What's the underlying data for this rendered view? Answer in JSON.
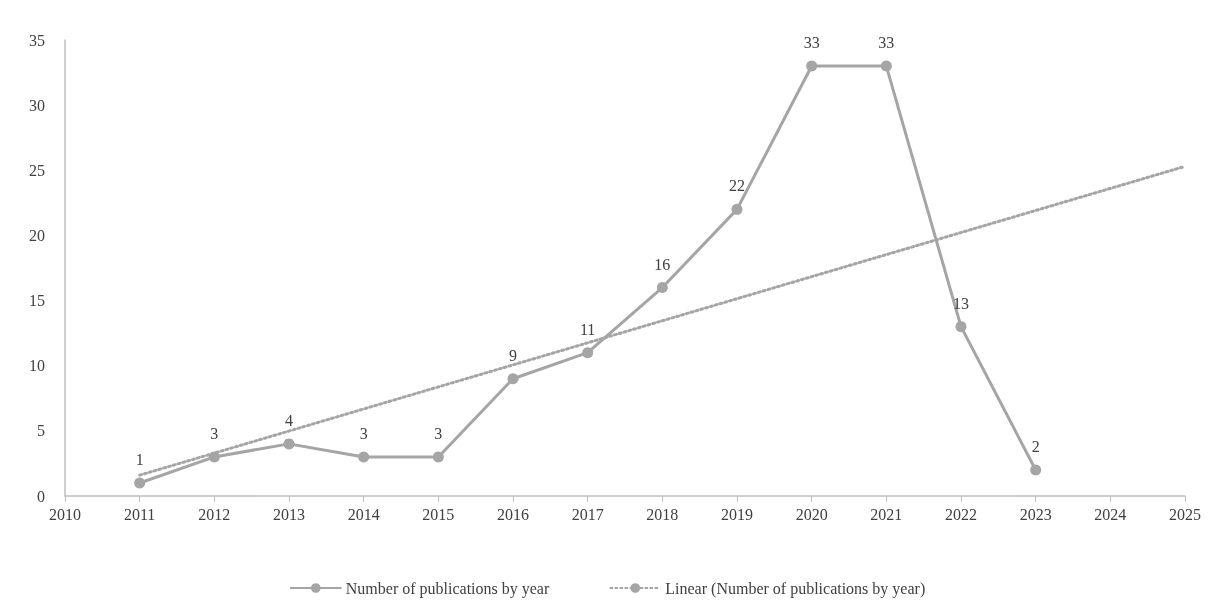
{
  "chart_data": {
    "type": "line",
    "x": [
      2011,
      2012,
      2013,
      2014,
      2015,
      2016,
      2017,
      2018,
      2019,
      2020,
      2021,
      2022,
      2023
    ],
    "series": [
      {
        "name": "Number of publications by year",
        "color": "#a5a5a5",
        "values": [
          1,
          3,
          4,
          3,
          3,
          9,
          11,
          16,
          22,
          33,
          33,
          13,
          2
        ],
        "value_labels": [
          "1",
          "3",
          "4",
          "3",
          "3",
          "9",
          "11",
          "16",
          "22",
          "33",
          "33",
          "13",
          "2"
        ],
        "marker": "circle",
        "line_style": "solid"
      },
      {
        "name": "Linear (Number of publications by year)",
        "color": "#a5a5a5",
        "x": [
          2011,
          2025
        ],
        "values": [
          1.6,
          25.3
        ],
        "marker": "none",
        "line_style": "dotted"
      }
    ],
    "xlim": [
      2010,
      2025
    ],
    "xticks": [
      2010,
      2011,
      2012,
      2013,
      2014,
      2015,
      2016,
      2017,
      2018,
      2019,
      2020,
      2021,
      2022,
      2023,
      2024,
      2025
    ],
    "ylim": [
      0,
      35
    ],
    "yticks": [
      0,
      5,
      10,
      15,
      20,
      25,
      30,
      35
    ],
    "grid": false,
    "legend": "bottom"
  }
}
